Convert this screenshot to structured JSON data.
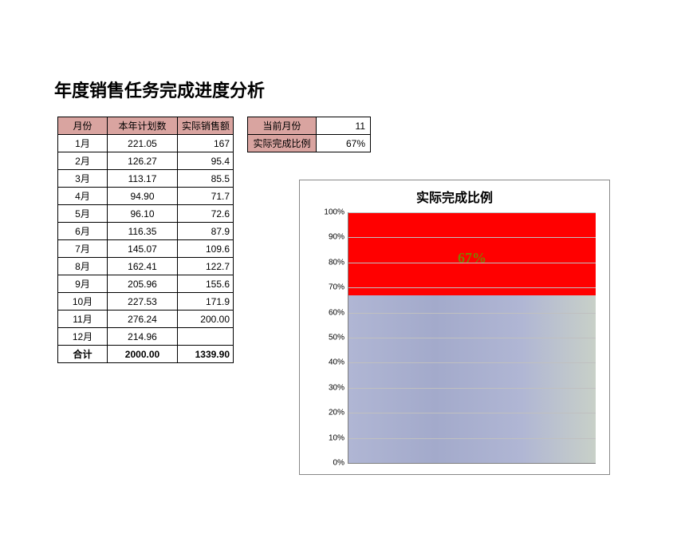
{
  "title": "年度销售任务完成进度分析",
  "main_table": {
    "headers": {
      "month": "月份",
      "plan": "本年计划数",
      "actual": "实际销售额"
    },
    "rows": [
      {
        "month": "1月",
        "plan": "221.05",
        "actual": "167"
      },
      {
        "month": "2月",
        "plan": "126.27",
        "actual": "95.4"
      },
      {
        "month": "3月",
        "plan": "113.17",
        "actual": "85.5"
      },
      {
        "month": "4月",
        "plan": "94.90",
        "actual": "71.7"
      },
      {
        "month": "5月",
        "plan": "96.10",
        "actual": "72.6"
      },
      {
        "month": "6月",
        "plan": "116.35",
        "actual": "87.9"
      },
      {
        "month": "7月",
        "plan": "145.07",
        "actual": "109.6"
      },
      {
        "month": "8月",
        "plan": "162.41",
        "actual": "122.7"
      },
      {
        "month": "9月",
        "plan": "205.96",
        "actual": "155.6"
      },
      {
        "month": "10月",
        "plan": "227.53",
        "actual": "171.9"
      },
      {
        "month": "11月",
        "plan": "276.24",
        "actual": "200.00"
      },
      {
        "month": "12月",
        "plan": "214.96",
        "actual": ""
      }
    ],
    "total": {
      "label": "合计",
      "plan": "2000.00",
      "actual": "1339.90"
    }
  },
  "side_table": {
    "rows": [
      {
        "label": "当前月份",
        "value": "11"
      },
      {
        "label": "实际完成比例",
        "value": "67%"
      }
    ]
  },
  "chart": {
    "type": "stacked-bar-100",
    "title": "实际完成比例",
    "title_fontsize": 16,
    "completion_pct": 67,
    "value_label": "67%",
    "value_label_color": "#7f7f00",
    "value_label_fontsize": 18,
    "fill_gradient": [
      "#b0b6d4",
      "#a3aacb",
      "#b0b6d4",
      "#c8d0c8"
    ],
    "remainder_color": "#ff0000",
    "ylim": [
      0,
      100
    ],
    "ytick_step": 10,
    "ytick_format_suffix": "%",
    "grid_color": "#c0c0c0",
    "axis_color": "#7f7f7f",
    "background_color": "#ffffff",
    "border_color": "#888888"
  },
  "colors": {
    "header_bg": "#d9a4a0",
    "border": "#000000"
  }
}
